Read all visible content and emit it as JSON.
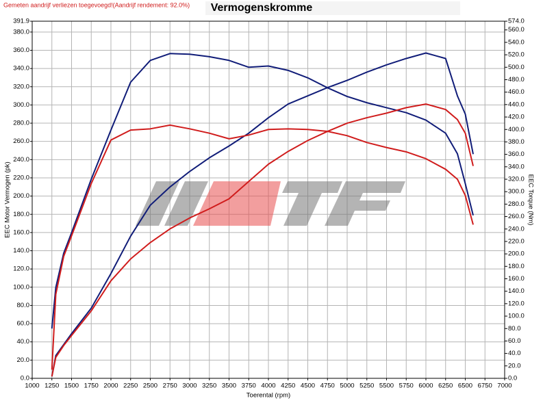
{
  "chart_data": {
    "type": "line",
    "title": "Vermogenskromme",
    "annotation": "Gemeten aandrijf verliezen toegevoegd!(Aandrijf rendement: 92.0%)",
    "x_label": "Toerental (rpm)",
    "y_label": "EEC Motor Vermogen (pk)",
    "y2_label": "EEC Torque (Nm)",
    "grid": true,
    "x": [
      1250,
      1300,
      1400,
      1500,
      1750,
      2000,
      2250,
      2500,
      2750,
      3000,
      3250,
      3500,
      3750,
      4000,
      4250,
      4500,
      4750,
      5000,
      5250,
      5500,
      5750,
      6000,
      6250,
      6400,
      6500,
      6600
    ],
    "series": [
      {
        "color": "#101c78",
        "values": [
          2,
          25,
          37,
          49,
          77,
          115,
          156,
          190,
          210,
          227,
          242,
          255,
          269,
          286,
          301,
          310,
          319,
          327,
          336,
          344,
          351,
          357,
          351,
          310,
          290,
          246
        ]
      },
      {
        "color": "#101c78",
        "axis": "y2",
        "values": [
          80,
          146,
          201,
          234,
          320,
          399,
          476,
          511,
          522,
          521,
          517,
          511,
          500,
          502,
          495,
          483,
          467,
          453,
          443,
          435,
          427,
          415,
          394,
          361,
          313,
          262
        ]
      },
      {
        "color": "#d01c1c",
        "values": [
          2,
          23,
          36,
          47,
          74,
          107,
          131,
          149,
          164,
          176,
          186,
          197,
          216,
          235,
          249,
          261,
          271,
          280,
          286,
          291,
          297,
          301,
          295,
          284,
          269,
          233
        ]
      },
      {
        "color": "#d01c1c",
        "axis": "y2",
        "values": [
          14,
          135,
          196,
          229,
          313,
          383,
          399,
          401,
          407,
          401,
          394,
          385,
          391,
          400,
          401,
          400,
          397,
          390,
          379,
          371,
          364,
          353,
          336,
          320,
          294,
          247
        ]
      }
    ],
    "xlim": [
      1000,
      7000
    ],
    "xticks": [
      1000,
      1250,
      1500,
      1750,
      2000,
      2250,
      2500,
      2750,
      3000,
      3250,
      3500,
      3750,
      4000,
      4250,
      4500,
      4750,
      5000,
      5250,
      5500,
      5750,
      6000,
      6250,
      6500,
      6750,
      7000
    ],
    "ylim": [
      0,
      391.9
    ],
    "yticks": [
      {
        "value": 0,
        "label": "0.0"
      },
      {
        "value": 20,
        "label": "20.0"
      },
      {
        "value": 40,
        "label": "40.0"
      },
      {
        "value": 60,
        "label": "60.0"
      },
      {
        "value": 80,
        "label": "80.0"
      },
      {
        "value": 100,
        "label": "100.0"
      },
      {
        "value": 120,
        "label": "120.0"
      },
      {
        "value": 140,
        "label": "140.0"
      },
      {
        "value": 160,
        "label": "160.0"
      },
      {
        "value": 180,
        "label": "180.0"
      },
      {
        "value": 200,
        "label": "200.0"
      },
      {
        "value": 220,
        "label": "220.0"
      },
      {
        "value": 240,
        "label": "240.0"
      },
      {
        "value": 260,
        "label": "260.0"
      },
      {
        "value": 280,
        "label": "280.0"
      },
      {
        "value": 300,
        "label": "300.0"
      },
      {
        "value": 320,
        "label": "320.0"
      },
      {
        "value": 340,
        "label": "340.0"
      },
      {
        "value": 360,
        "label": "360.0"
      },
      {
        "value": 380,
        "label": "380.0"
      },
      391.9
    ],
    "y2lim": [
      0,
      574
    ],
    "y2ticks": [
      {
        "value": 0,
        "label": "0.0"
      },
      {
        "value": 20,
        "label": "20.0"
      },
      {
        "value": 40,
        "label": "40.0"
      },
      {
        "value": 60,
        "label": "60.0"
      },
      {
        "value": 80,
        "label": "80.0"
      },
      {
        "value": 100,
        "label": "100.0"
      },
      {
        "value": 120,
        "label": "120.0"
      },
      {
        "value": 140,
        "label": "140.0"
      },
      {
        "value": 160,
        "label": "160.0"
      },
      {
        "value": 180,
        "label": "180.0"
      },
      {
        "value": 200,
        "label": "200.0"
      },
      {
        "value": 220,
        "label": "220.0"
      },
      {
        "value": 240,
        "label": "240.0"
      },
      {
        "value": 260,
        "label": "260.0"
      },
      {
        "value": 280,
        "label": "280.0"
      },
      {
        "value": 300,
        "label": "300.0"
      },
      {
        "value": 320,
        "label": "320.0"
      },
      {
        "value": 340,
        "label": "340.0"
      },
      {
        "value": 360,
        "label": "360.0"
      },
      {
        "value": 380,
        "label": "380.0"
      },
      {
        "value": 400,
        "label": "400.0"
      },
      {
        "value": 420,
        "label": "420.0"
      },
      {
        "value": 440,
        "label": "440.0"
      },
      {
        "value": 460,
        "label": "460.0"
      },
      {
        "value": 480,
        "label": "480.0"
      },
      {
        "value": 500,
        "label": "500.0"
      },
      {
        "value": 520,
        "label": "520.0"
      },
      {
        "value": 540,
        "label": "540.0"
      },
      {
        "value": 560,
        "label": "560.0"
      },
      {
        "value": 574,
        "label": "574.0"
      }
    ]
  }
}
